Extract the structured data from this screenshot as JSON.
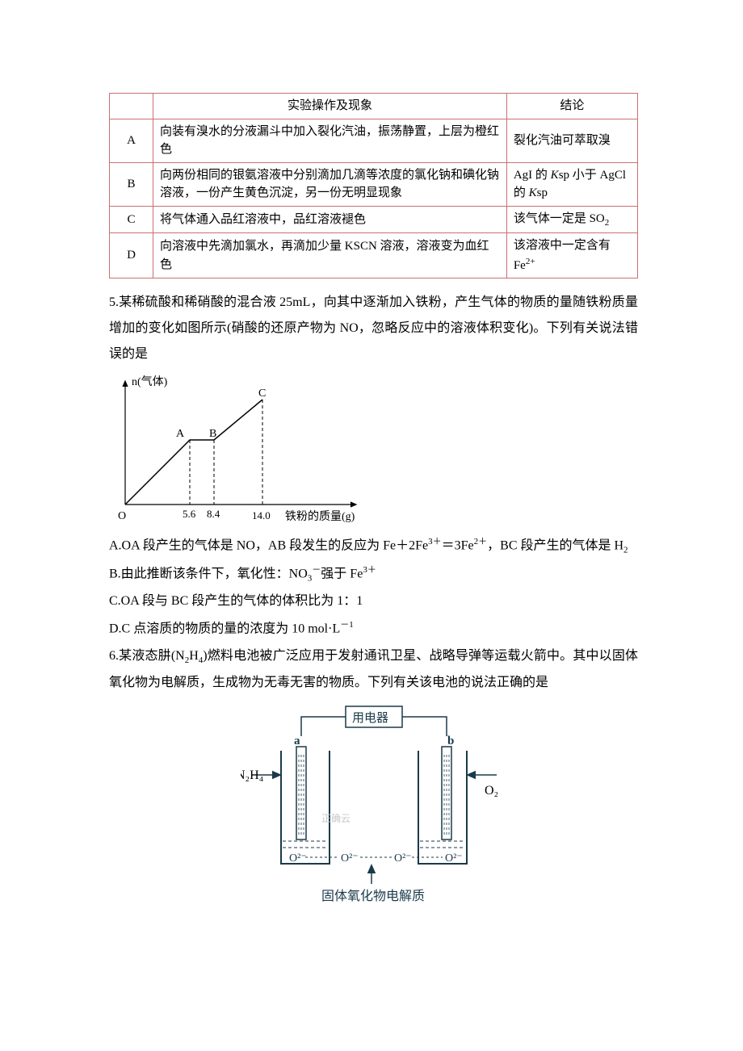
{
  "table": {
    "header_op": "实验操作及现象",
    "header_conc": "结论",
    "rows": [
      {
        "label": "A",
        "op": "向装有溴水的分液漏斗中加入裂化汽油，振荡静置，上层为橙红色",
        "conc_plain": "裂化汽油可萃取溴"
      },
      {
        "label": "B",
        "op": "向两份相同的银氨溶液中分别滴加几滴等浓度的氯化钠和碘化钠溶液，一份产生黄色沉淀，另一份无明显现象",
        "conc_html": "AgI 的 <span class=\"italic\">K</span>sp 小于 AgCl 的 <span class=\"italic\">K</span>sp"
      },
      {
        "label": "C",
        "op": "将气体通入品红溶液中，品红溶液褪色",
        "conc_html": "该气体一定是 SO<span class=\"sub\">2</span>"
      },
      {
        "label": "D",
        "op": "向溶液中先滴加氯水，再滴加少量 KSCN 溶液，溶液变为血红色",
        "conc_html": "该溶液中一定含有 Fe<span class=\"sup\">2+</span>"
      }
    ]
  },
  "q5": {
    "stem": "5.某稀硫酸和稀硝酸的混合液 25mL，向其中逐渐加入铁粉，产生气体的物质的量随铁粉质量增加的变化如图所示(硝酸的还原产物为 NO，忽略反应中的溶液体积变化)。下列有关说法错误的是",
    "chart": {
      "y_label": "n(气体)",
      "x_label": "铁粉的质量(g)",
      "points": {
        "A_label": "A",
        "B_label": "B",
        "C_label": "C",
        "x_ticks": [
          "5.6",
          "8.4",
          "14.0"
        ],
        "O_label": "O"
      },
      "stroke": "#000000"
    },
    "optA": "A.OA 段产生的气体是 NO，AB 段发生的反应为 Fe＋2Fe<span class=\"sup\">3＋</span>＝3Fe<span class=\"sup\">2＋</span>，BC 段产生的气体是 H<span class=\"sub\">2</span>",
    "optB": "B.由此推断该条件下，氧化性：NO<span class=\"sub\">3</span><span class=\"sup\">－</span>强于 Fe<span class=\"sup\">3＋</span>",
    "optC": "C.OA 段与 BC 段产生的气体的体积比为 1：1",
    "optD": "D.C 点溶质的物质的量的浓度为 10 mol·L<span class=\"sup\">－1</span>"
  },
  "q6": {
    "stem": "6.某液态肼(N<span class=\"sub\">2</span>H<span class=\"sub\">4</span>)燃料电池被广泛应用于发射通讯卫星、战略导弹等运载火箭中。其中以固体氧化物为电解质，生成物为无毒无害的物质。下列有关该电池的说法正确的是",
    "diagram": {
      "device_label": "用电器",
      "a_label": "a",
      "b_label": "b",
      "n2h4_label": "N₂H₄",
      "o2_label": "O₂",
      "o2minus_labels": [
        "O²⁻",
        "O²⁻",
        "O²⁻"
      ],
      "watermark": "正确云",
      "electrolyte_label": "固体氧化物电解质",
      "color_dark": "#2a4a5a",
      "color_light": "#a8c8d8",
      "color_text": "#1a3a4a"
    }
  }
}
